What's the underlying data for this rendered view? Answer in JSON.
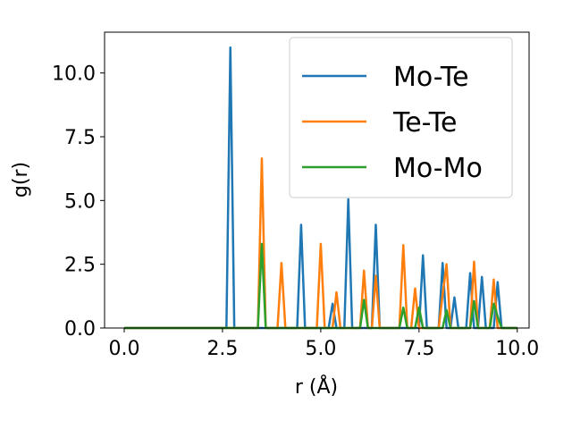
{
  "chart_data": {
    "type": "line",
    "xlabel": "r (Å)",
    "ylabel": "g(r)",
    "xlim": [
      -0.5,
      10.3
    ],
    "ylim": [
      0,
      11.6
    ],
    "xticks": [
      0.0,
      2.5,
      5.0,
      7.5,
      10.0
    ],
    "xtick_labels": [
      "0.0",
      "2.5",
      "5.0",
      "7.5",
      "10.0"
    ],
    "yticks": [
      0.0,
      2.5,
      5.0,
      7.5,
      10.0
    ],
    "ytick_labels": [
      "0.0",
      "2.5",
      "5.0",
      "7.5",
      "10.0"
    ],
    "legend_position": "top-right",
    "grid": false,
    "series": [
      {
        "name": "Mo-Te",
        "color": "#1f77b4",
        "x": [
          0.0,
          2.6,
          2.7,
          2.8,
          4.4,
          4.5,
          4.6,
          5.2,
          5.3,
          5.4,
          5.6,
          5.7,
          5.8,
          6.3,
          6.4,
          6.5,
          7.5,
          7.6,
          7.7,
          8.0,
          8.1,
          8.2,
          8.3,
          8.4,
          8.5,
          8.7,
          8.8,
          8.9,
          9.0,
          9.1,
          9.2,
          9.4,
          9.5,
          9.6,
          9.7,
          10.0
        ],
        "y": [
          0.0,
          0.0,
          11.0,
          0.0,
          0.0,
          4.05,
          0.0,
          0.0,
          0.95,
          0.0,
          0.0,
          5.05,
          0.0,
          0.0,
          4.05,
          0.0,
          0.0,
          2.85,
          0.0,
          0.0,
          2.55,
          0.0,
          0.0,
          1.2,
          0.0,
          0.0,
          2.15,
          0.0,
          0.0,
          2.0,
          0.0,
          0.0,
          1.8,
          0.0,
          0.0,
          0.0
        ]
      },
      {
        "name": "Te-Te",
        "color": "#ff7f0e",
        "x": [
          0.0,
          3.4,
          3.5,
          3.6,
          3.9,
          4.0,
          4.1,
          4.9,
          5.0,
          5.1,
          5.3,
          5.4,
          5.5,
          6.0,
          6.1,
          6.2,
          6.3,
          6.4,
          6.5,
          7.0,
          7.1,
          7.2,
          7.3,
          7.4,
          7.5,
          8.0,
          8.1,
          8.2,
          8.3,
          8.4,
          8.8,
          8.9,
          9.0,
          9.1,
          9.3,
          9.4,
          9.5,
          10.0
        ],
        "y": [
          0.0,
          0.0,
          6.65,
          0.0,
          0.0,
          2.55,
          0.0,
          0.0,
          3.3,
          0.0,
          0.0,
          1.4,
          0.0,
          0.0,
          2.25,
          0.0,
          0.0,
          2.05,
          0.0,
          0.0,
          3.25,
          0.0,
          0.0,
          1.55,
          0.0,
          0.0,
          1.3,
          2.5,
          0.0,
          0.0,
          0.0,
          2.6,
          0.0,
          0.0,
          0.0,
          1.9,
          0.0,
          0.0
        ]
      },
      {
        "name": "Mo-Mo",
        "color": "#2ca02c",
        "x": [
          0.0,
          3.4,
          3.5,
          3.6,
          6.0,
          6.1,
          6.2,
          7.0,
          7.1,
          7.2,
          7.4,
          7.5,
          7.6,
          8.1,
          8.2,
          8.3,
          8.8,
          8.9,
          9.0,
          9.3,
          9.4,
          9.5,
          9.6,
          10.0
        ],
        "y": [
          0.0,
          0.0,
          3.3,
          0.0,
          0.0,
          1.1,
          0.0,
          0.0,
          0.8,
          0.0,
          0.0,
          0.8,
          0.0,
          0.0,
          0.7,
          0.0,
          0.0,
          1.05,
          0.0,
          0.0,
          0.95,
          0.45,
          0.0,
          0.0
        ]
      }
    ]
  }
}
